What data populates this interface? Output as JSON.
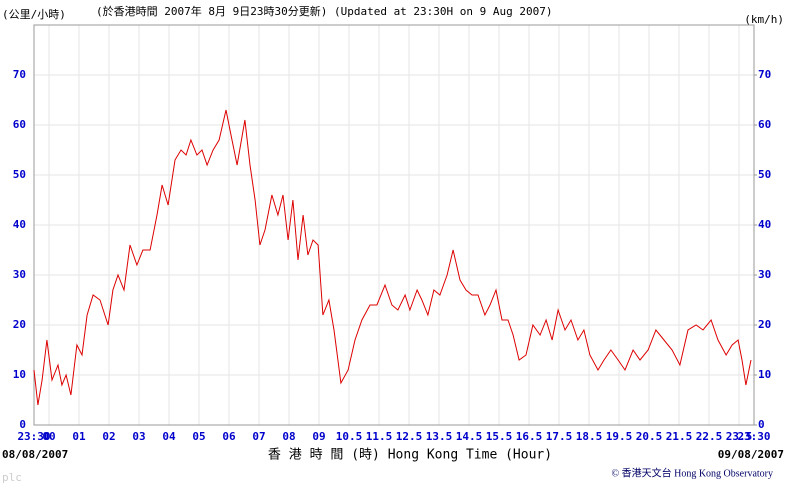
{
  "chart_data": {
    "type": "line",
    "title": "(於香港時間 2007年 8月 9日23時30分更新) (Updated at 23:30H on 9 Aug 2007)",
    "ylabel": "(公里/小時)",
    "y2label": "(km/h)",
    "xlabel": "香 港 時 間 (時)  Hong Kong Time (Hour)",
    "start_date": "08/08/2007",
    "end_date": "09/08/2007",
    "credit": "© 香港天文台 Hong Kong Observatory",
    "footer": "plc",
    "xlim": [
      0,
      24
    ],
    "xticks": [
      {
        "value": 0,
        "label": "23:30"
      },
      {
        "value": 0.5,
        "label": "00"
      },
      {
        "value": 1.5,
        "label": "01"
      },
      {
        "value": 2.5,
        "label": "02"
      },
      {
        "value": 3.5,
        "label": "03"
      },
      {
        "value": 4.5,
        "label": "04"
      },
      {
        "value": 5.5,
        "label": "05"
      },
      {
        "value": 6.5,
        "label": "06"
      },
      {
        "value": 7.5,
        "label": "07"
      },
      {
        "value": 8.5,
        "label": "08"
      },
      {
        "value": 9.5,
        "label": "09"
      },
      10.5,
      11.5,
      12.5,
      13.5,
      14.5,
      15.5,
      16.5,
      17.5,
      18.5,
      19.5,
      20.5,
      21.5,
      22.5,
      23.5,
      {
        "value": 24,
        "label": "23:30"
      }
    ],
    "ylim": [
      0,
      80
    ],
    "yticks": [
      0,
      10,
      20,
      30,
      40,
      50,
      60,
      70
    ],
    "y2lim": [
      0,
      80
    ],
    "y2ticks": [
      0,
      10,
      20,
      30,
      40,
      50,
      60,
      70
    ],
    "grid": true,
    "x": [
      0,
      0.13,
      0.27,
      0.43,
      0.6,
      0.8,
      0.93,
      1.07,
      1.23,
      1.43,
      1.6,
      1.77,
      1.97,
      2.2,
      2.47,
      2.63,
      2.8,
      3,
      3.2,
      3.43,
      3.63,
      3.87,
      4.1,
      4.27,
      4.47,
      4.7,
      4.9,
      5.07,
      5.23,
      5.43,
      5.6,
      5.77,
      5.97,
      6.17,
      6.4,
      6.6,
      6.77,
      7.03,
      7.2,
      7.37,
      7.53,
      7.7,
      7.93,
      8.13,
      8.3,
      8.47,
      8.63,
      8.8,
      8.97,
      9.13,
      9.3,
      9.47,
      9.63,
      9.83,
      10,
      10.23,
      10.47,
      10.7,
      10.93,
      11.2,
      11.43,
      11.7,
      11.93,
      12.13,
      12.37,
      12.53,
      12.77,
      12.93,
      13.13,
      13.33,
      13.53,
      13.77,
      13.97,
      14.2,
      14.4,
      14.6,
      14.8,
      15.03,
      15.2,
      15.4,
      15.6,
      15.8,
      15.97,
      16.17,
      16.4,
      16.63,
      16.87,
      17.07,
      17.27,
      17.47,
      17.7,
      17.9,
      18.13,
      18.33,
      18.53,
      18.8,
      19,
      19.23,
      19.47,
      19.7,
      19.97,
      20.2,
      20.47,
      20.73,
      21,
      21.27,
      21.53,
      21.8,
      22.07,
      22.3,
      22.57,
      22.8,
      23.07,
      23.27,
      23.47,
      23.6,
      23.73,
      23.9
    ],
    "series": [
      {
        "color": "#dd0000",
        "values": [
          11,
          4,
          9,
          17,
          9,
          12,
          8,
          10,
          6,
          16,
          14,
          22,
          26,
          25,
          20,
          27,
          30,
          27,
          36,
          32,
          35,
          35,
          42,
          48,
          44,
          53,
          55,
          54,
          57,
          54,
          55,
          52,
          55,
          57,
          63,
          57,
          52,
          61,
          52,
          45,
          36,
          39,
          46,
          42,
          46,
          37,
          45,
          33,
          42,
          34,
          37,
          36,
          22,
          25,
          19,
          8.4,
          11,
          17,
          21,
          24,
          24,
          28,
          24,
          23,
          26,
          23,
          27,
          25,
          22,
          27,
          26,
          30,
          35,
          29,
          27,
          26,
          26,
          22,
          24,
          27,
          21,
          21,
          18,
          13,
          14,
          20,
          18,
          21,
          17,
          23,
          19,
          21,
          17,
          19,
          14,
          11,
          13,
          15,
          13,
          11,
          15,
          13,
          15,
          19,
          17,
          15,
          12,
          19,
          20,
          19,
          21,
          17,
          14,
          16,
          17,
          13,
          8,
          13
        ]
      }
    ]
  }
}
